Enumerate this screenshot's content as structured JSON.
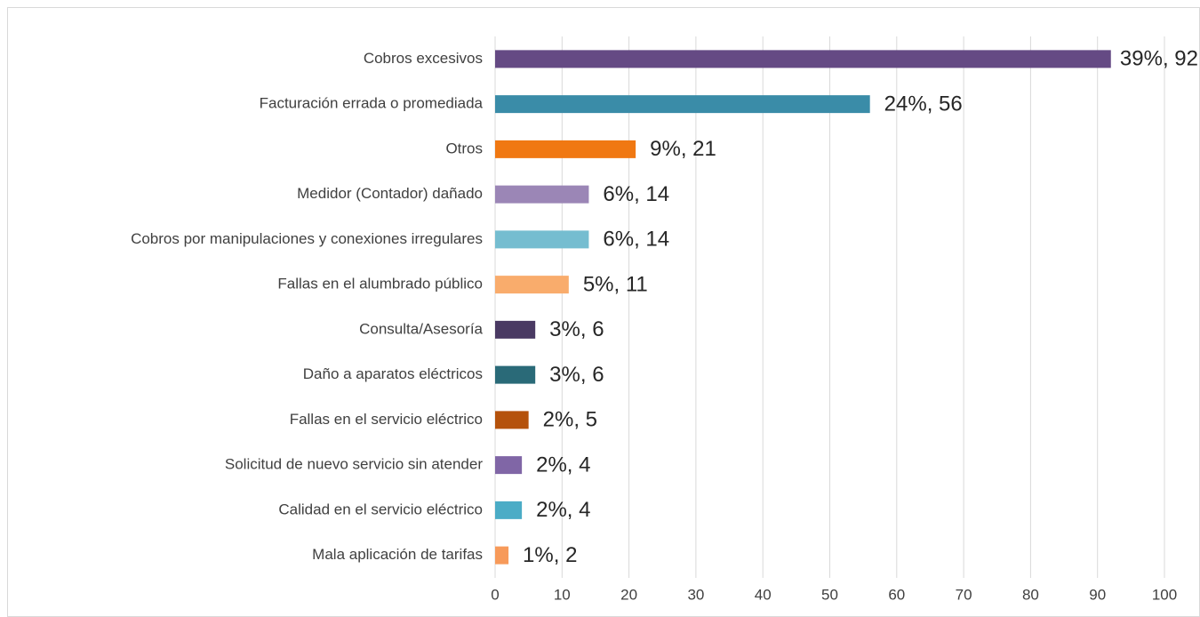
{
  "chart_data": {
    "type": "bar",
    "orientation": "horizontal",
    "categories": [
      "Cobros excesivos",
      "Facturación errada o promediada",
      "Otros",
      "Medidor (Contador) dañado",
      "Cobros por manipulaciones y conexiones irregulares",
      "Fallas en el alumbrado público",
      "Consulta/Asesoría",
      "Daño a aparatos eléctricos",
      "Fallas en el servicio eléctrico",
      "Solicitud de nuevo servicio sin atender",
      "Calidad en el servicio eléctrico",
      "Mala aplicación de tarifas"
    ],
    "values": [
      92,
      56,
      21,
      14,
      14,
      11,
      6,
      6,
      5,
      4,
      4,
      2
    ],
    "value_labels": [
      "39%, 92",
      "24%, 56",
      "9%, 21",
      "6%, 14",
      "6%, 14",
      "5%, 11",
      "3%, 6",
      "3%, 6",
      "2%, 5",
      "2%, 4",
      "2%, 4",
      "1%, 2"
    ],
    "colors": [
      "#654a84",
      "#3a8ca8",
      "#f07812",
      "#9b86b6",
      "#75bdd0",
      "#f9ac6c",
      "#4a3a63",
      "#2a6a78",
      "#b5520c",
      "#8066a6",
      "#4bacc6",
      "#f79a5a"
    ],
    "xlim": [
      0,
      100
    ],
    "xticks": [
      0,
      10,
      20,
      30,
      40,
      50,
      60,
      70,
      80,
      90,
      100
    ],
    "grid": true
  }
}
